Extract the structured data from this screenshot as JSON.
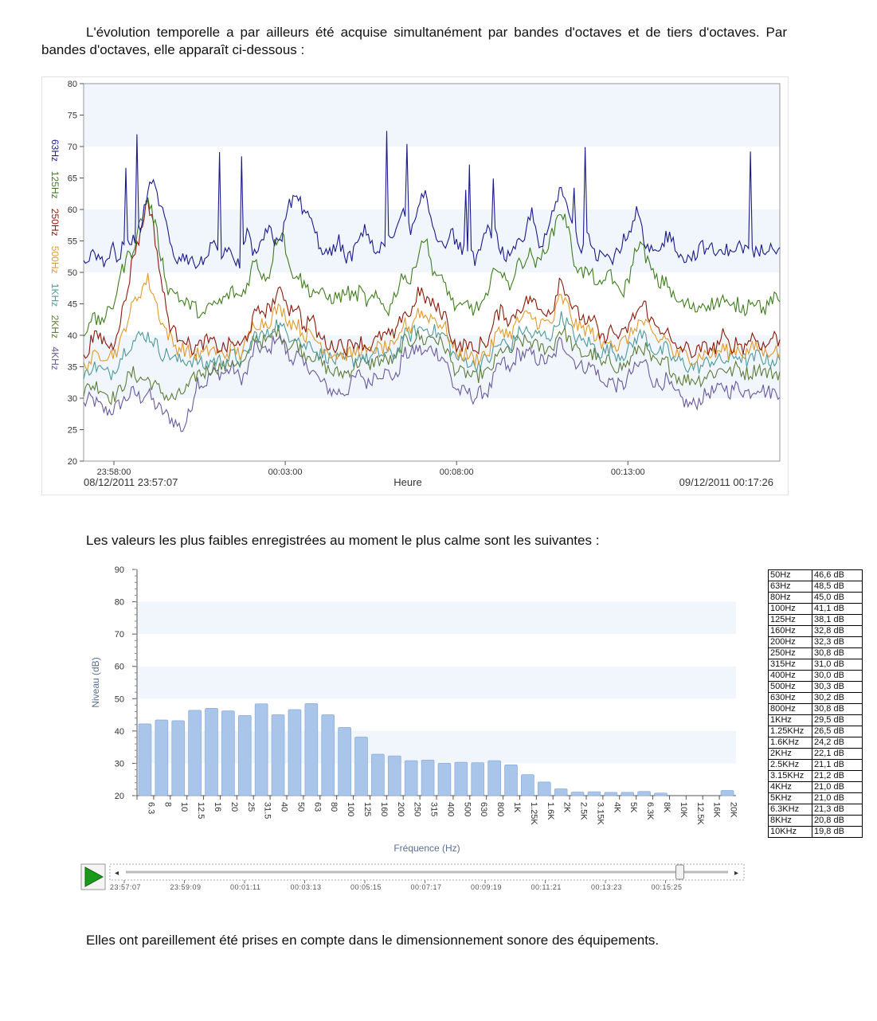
{
  "intro_paragraph": "L'évolution temporelle a par ailleurs été acquise simultanément par bandes d'octaves et de tiers d'octaves. Par bandes d'octaves, elle apparaît ci-dessous :",
  "mid_paragraph": "Les valeurs les plus faibles enregistrées au moment le plus calme sont les suivantes :",
  "final_paragraph": "Elles ont pareillement été prises en compte dans le dimensionnement sonore des équipements.",
  "chart_data": [
    {
      "type": "line",
      "title": "",
      "xlabel": "Heure",
      "ylabel": "",
      "ylim": [
        20,
        80
      ],
      "yticks": [
        "20",
        "25",
        "30",
        "35",
        "40",
        "45",
        "50",
        "55",
        "60",
        "65",
        "70",
        "75",
        "80"
      ],
      "xticks": [
        "23:58:00",
        "00:03:00",
        "00:08:00",
        "00:13:00"
      ],
      "start_label": "08/12/2011 23:57:07",
      "end_label": "09/12/2011 00:17:26",
      "x_range": [
        "23:57:07",
        "00:17:26"
      ],
      "grid": "alternating horizontal bands",
      "legend_position": "left, rotated",
      "series": [
        {
          "name": "63Hz",
          "color": "#1a1a8c",
          "values": [
            52,
            53,
            52,
            51,
            54,
            52,
            56,
            55,
            57,
            63,
            64,
            60,
            56,
            52,
            53,
            52,
            51,
            52,
            55,
            52,
            54,
            52,
            51,
            56,
            53,
            54,
            57,
            55,
            56,
            61,
            62,
            60,
            58,
            55,
            53,
            53,
            55,
            52,
            53,
            56,
            57,
            53,
            54,
            55,
            56,
            60,
            56,
            59,
            63,
            58,
            55,
            55,
            56,
            54,
            53,
            52,
            54,
            57,
            56,
            53,
            52,
            54,
            55,
            60,
            55,
            55,
            59,
            63,
            61,
            56,
            54,
            57,
            53,
            53,
            52,
            53,
            55,
            56,
            60,
            54,
            53,
            53,
            56,
            55,
            53,
            52,
            53,
            54,
            54,
            53,
            53,
            54,
            54,
            54,
            53,
            53,
            54,
            55,
            53
          ]
        },
        {
          "name": "125Hz",
          "color": "#3f7d1e",
          "values": [
            40,
            43,
            42,
            43,
            44,
            49,
            52,
            54,
            58,
            62,
            58,
            52,
            47,
            47,
            45,
            45,
            44,
            43,
            45,
            45,
            46,
            47,
            46,
            48,
            52,
            50,
            49,
            55,
            57,
            50,
            50,
            48,
            47,
            47,
            46,
            46,
            46,
            47,
            46,
            47,
            45,
            46,
            45,
            44,
            47,
            50,
            48,
            53,
            56,
            51,
            49,
            48,
            45,
            44,
            45,
            44,
            45,
            46,
            52,
            49,
            48,
            51,
            52,
            53,
            51,
            54,
            56,
            60,
            58,
            52,
            50,
            50,
            49,
            47,
            51,
            47,
            47,
            50,
            55,
            53,
            50,
            48,
            49,
            46,
            45,
            45,
            44,
            45,
            45,
            45,
            46,
            44,
            45,
            44,
            46,
            45,
            44,
            46,
            45
          ]
        },
        {
          "name": "250Hz",
          "color": "#8b1a0a",
          "values": [
            36,
            39,
            40,
            39,
            38,
            42,
            46,
            53,
            56,
            62,
            56,
            48,
            42,
            40,
            40,
            38,
            38,
            39,
            39,
            38,
            38,
            39,
            38,
            40,
            43,
            44,
            44,
            46,
            47,
            44,
            45,
            41,
            43,
            40,
            39,
            38,
            39,
            38,
            39,
            39,
            38,
            39,
            40,
            40,
            40,
            44,
            43,
            47,
            46,
            45,
            44,
            43,
            39,
            38,
            39,
            37,
            39,
            39,
            43,
            44,
            42,
            44,
            45,
            46,
            44,
            44,
            44,
            49,
            47,
            44,
            43,
            42,
            42,
            39,
            41,
            40,
            40,
            42,
            44,
            45,
            42,
            41,
            41,
            38,
            38,
            38,
            37,
            38,
            38,
            38,
            40,
            38,
            39,
            38,
            40,
            39,
            38,
            40,
            39
          ]
        },
        {
          "name": "500Hz",
          "color": "#e09a2a",
          "values": [
            35,
            36,
            37,
            37,
            37,
            38,
            42,
            45,
            47,
            49,
            46,
            42,
            40,
            38,
            38,
            37,
            37,
            37,
            38,
            37,
            37,
            38,
            37,
            39,
            42,
            42,
            42,
            44,
            44,
            42,
            42,
            40,
            40,
            39,
            38,
            37,
            37,
            37,
            37,
            38,
            37,
            38,
            38,
            38,
            38,
            42,
            41,
            44,
            43,
            43,
            42,
            41,
            38,
            37,
            37,
            36,
            37,
            37,
            40,
            41,
            40,
            42,
            43,
            43,
            42,
            42,
            42,
            46,
            45,
            42,
            41,
            41,
            40,
            38,
            40,
            38,
            39,
            40,
            42,
            42,
            40,
            39,
            40,
            37,
            37,
            37,
            36,
            37,
            37,
            37,
            38,
            37,
            38,
            37,
            38,
            38,
            37,
            38,
            37
          ]
        },
        {
          "name": "1KHz",
          "color": "#4e9a9a",
          "values": [
            33,
            35,
            35,
            34,
            34,
            36,
            38,
            39,
            40,
            40,
            39,
            37,
            37,
            36,
            36,
            36,
            36,
            35,
            36,
            36,
            36,
            37,
            36,
            37,
            40,
            40,
            40,
            42,
            41,
            40,
            40,
            38,
            39,
            37,
            37,
            36,
            36,
            36,
            36,
            37,
            36,
            37,
            37,
            37,
            37,
            40,
            40,
            41,
            41,
            41,
            40,
            40,
            37,
            36,
            36,
            35,
            36,
            36,
            38,
            39,
            38,
            40,
            41,
            40,
            40,
            40,
            40,
            43,
            42,
            40,
            39,
            39,
            38,
            37,
            38,
            37,
            37,
            38,
            40,
            40,
            38,
            37,
            38,
            36,
            36,
            35,
            35,
            35,
            36,
            36,
            36,
            36,
            37,
            36,
            36,
            37,
            36,
            36,
            36
          ]
        },
        {
          "name": "2KHz",
          "color": "#5e7d3a",
          "values": [
            31,
            32,
            32,
            31,
            30,
            31,
            33,
            34,
            33,
            33,
            32,
            31,
            30,
            30,
            31,
            32,
            34,
            34,
            35,
            35,
            35,
            36,
            35,
            36,
            40,
            39,
            39,
            41,
            40,
            38,
            39,
            37,
            37,
            36,
            35,
            34,
            34,
            34,
            35,
            36,
            35,
            36,
            36,
            36,
            36,
            39,
            39,
            40,
            39,
            40,
            39,
            38,
            35,
            34,
            34,
            33,
            34,
            34,
            36,
            38,
            37,
            39,
            39,
            39,
            38,
            38,
            38,
            41,
            40,
            38,
            37,
            37,
            37,
            35,
            36,
            35,
            35,
            36,
            38,
            38,
            36,
            35,
            36,
            34,
            33,
            33,
            33,
            33,
            34,
            34,
            35,
            34,
            35,
            34,
            34,
            35,
            34,
            34,
            34
          ]
        },
        {
          "name": "4KHz",
          "color": "#6a5a9e",
          "values": [
            29,
            30,
            29,
            28,
            28,
            29,
            30,
            31,
            30,
            31,
            29,
            28,
            27,
            26,
            25,
            28,
            33,
            32,
            34,
            34,
            34,
            35,
            33,
            34,
            38,
            38,
            37,
            40,
            39,
            36,
            37,
            35,
            35,
            33,
            32,
            31,
            31,
            31,
            33,
            34,
            32,
            34,
            34,
            34,
            33,
            37,
            37,
            38,
            37,
            38,
            37,
            36,
            32,
            31,
            31,
            30,
            31,
            31,
            34,
            36,
            34,
            37,
            37,
            37,
            36,
            36,
            36,
            39,
            38,
            36,
            35,
            35,
            35,
            32,
            33,
            32,
            32,
            34,
            35,
            36,
            33,
            32,
            33,
            31,
            30,
            29,
            29,
            30,
            31,
            31,
            32,
            31,
            32,
            31,
            31,
            32,
            31,
            31,
            31
          ]
        }
      ]
    },
    {
      "type": "bar",
      "title": "",
      "xlabel": "Fréquence (Hz)",
      "ylabel": "Niveau (dB)",
      "ylim": [
        20,
        90
      ],
      "yticks": [
        "20",
        "30",
        "40",
        "50",
        "60",
        "70",
        "80",
        "90"
      ],
      "categories": [
        "6.3",
        "8",
        "10",
        "12.5",
        "16",
        "20",
        "25",
        "31.5",
        "40",
        "50",
        "63",
        "80",
        "100",
        "125",
        "160",
        "200",
        "250",
        "315",
        "400",
        "500",
        "630",
        "800",
        "1K",
        "1.25K",
        "1.6K",
        "2K",
        "2.5K",
        "3.15K",
        "4K",
        "5K",
        "6.3K",
        "8K",
        "10K",
        "12.5K",
        "16K",
        "20K"
      ],
      "values": [
        42.2,
        43.4,
        43.2,
        46.4,
        47.0,
        46.2,
        44.8,
        48.4,
        45.0,
        46.6,
        48.5,
        45.0,
        41.1,
        38.1,
        32.8,
        32.3,
        30.8,
        31.0,
        30.0,
        30.3,
        30.2,
        30.8,
        29.5,
        26.5,
        24.2,
        22.1,
        21.1,
        21.2,
        21.0,
        21.0,
        21.3,
        20.8,
        19.8,
        19.8,
        19.8,
        21.6
      ],
      "bar_color": "#a9c5ea",
      "grid": "alternating horizontal bands",
      "timeline_labels": [
        "23:57:07",
        "23:59:09",
        "00:01:11",
        "00:03:13",
        "00:05:15",
        "00:07:17",
        "00:09:19",
        "00:11:21",
        "00:13:23",
        "00:15:25"
      ],
      "slider_position": 0.92
    }
  ],
  "table": {
    "rows": [
      [
        "50Hz",
        "46,6 dB"
      ],
      [
        "63Hz",
        "48,5 dB"
      ],
      [
        "80Hz",
        "45,0 dB"
      ],
      [
        "100Hz",
        "41,1 dB"
      ],
      [
        "125Hz",
        "38,1 dB"
      ],
      [
        "160Hz",
        "32,8 dB"
      ],
      [
        "200Hz",
        "32,3 dB"
      ],
      [
        "250Hz",
        "30,8 dB"
      ],
      [
        "315Hz",
        "31,0 dB"
      ],
      [
        "400Hz",
        "30,0 dB"
      ],
      [
        "500Hz",
        "30,3 dB"
      ],
      [
        "630Hz",
        "30,2 dB"
      ],
      [
        "800Hz",
        "30,8 dB"
      ],
      [
        "1KHz",
        "29,5 dB"
      ],
      [
        "1.25KHz",
        "26,5 dB"
      ],
      [
        "1.6KHz",
        "24,2 dB"
      ],
      [
        "2KHz",
        "22,1 dB"
      ],
      [
        "2.5KHz",
        "21,1 dB"
      ],
      [
        "3.15KHz",
        "21,2 dB"
      ],
      [
        "4KHz",
        "21,0 dB"
      ],
      [
        "5KHz",
        "21,0 dB"
      ],
      [
        "6.3KHz",
        "21,3 dB"
      ],
      [
        "8KHz",
        "20,8 dB"
      ],
      [
        "10KHz",
        "19,8 dB"
      ]
    ]
  },
  "icons": {
    "play": "play-icon",
    "scroll_left": "arrow-left-icon",
    "scroll_right": "arrow-right-icon"
  },
  "colors": {
    "band": "#f1f5fc",
    "axis": "#444444",
    "play_green": "#1a9a1a"
  }
}
